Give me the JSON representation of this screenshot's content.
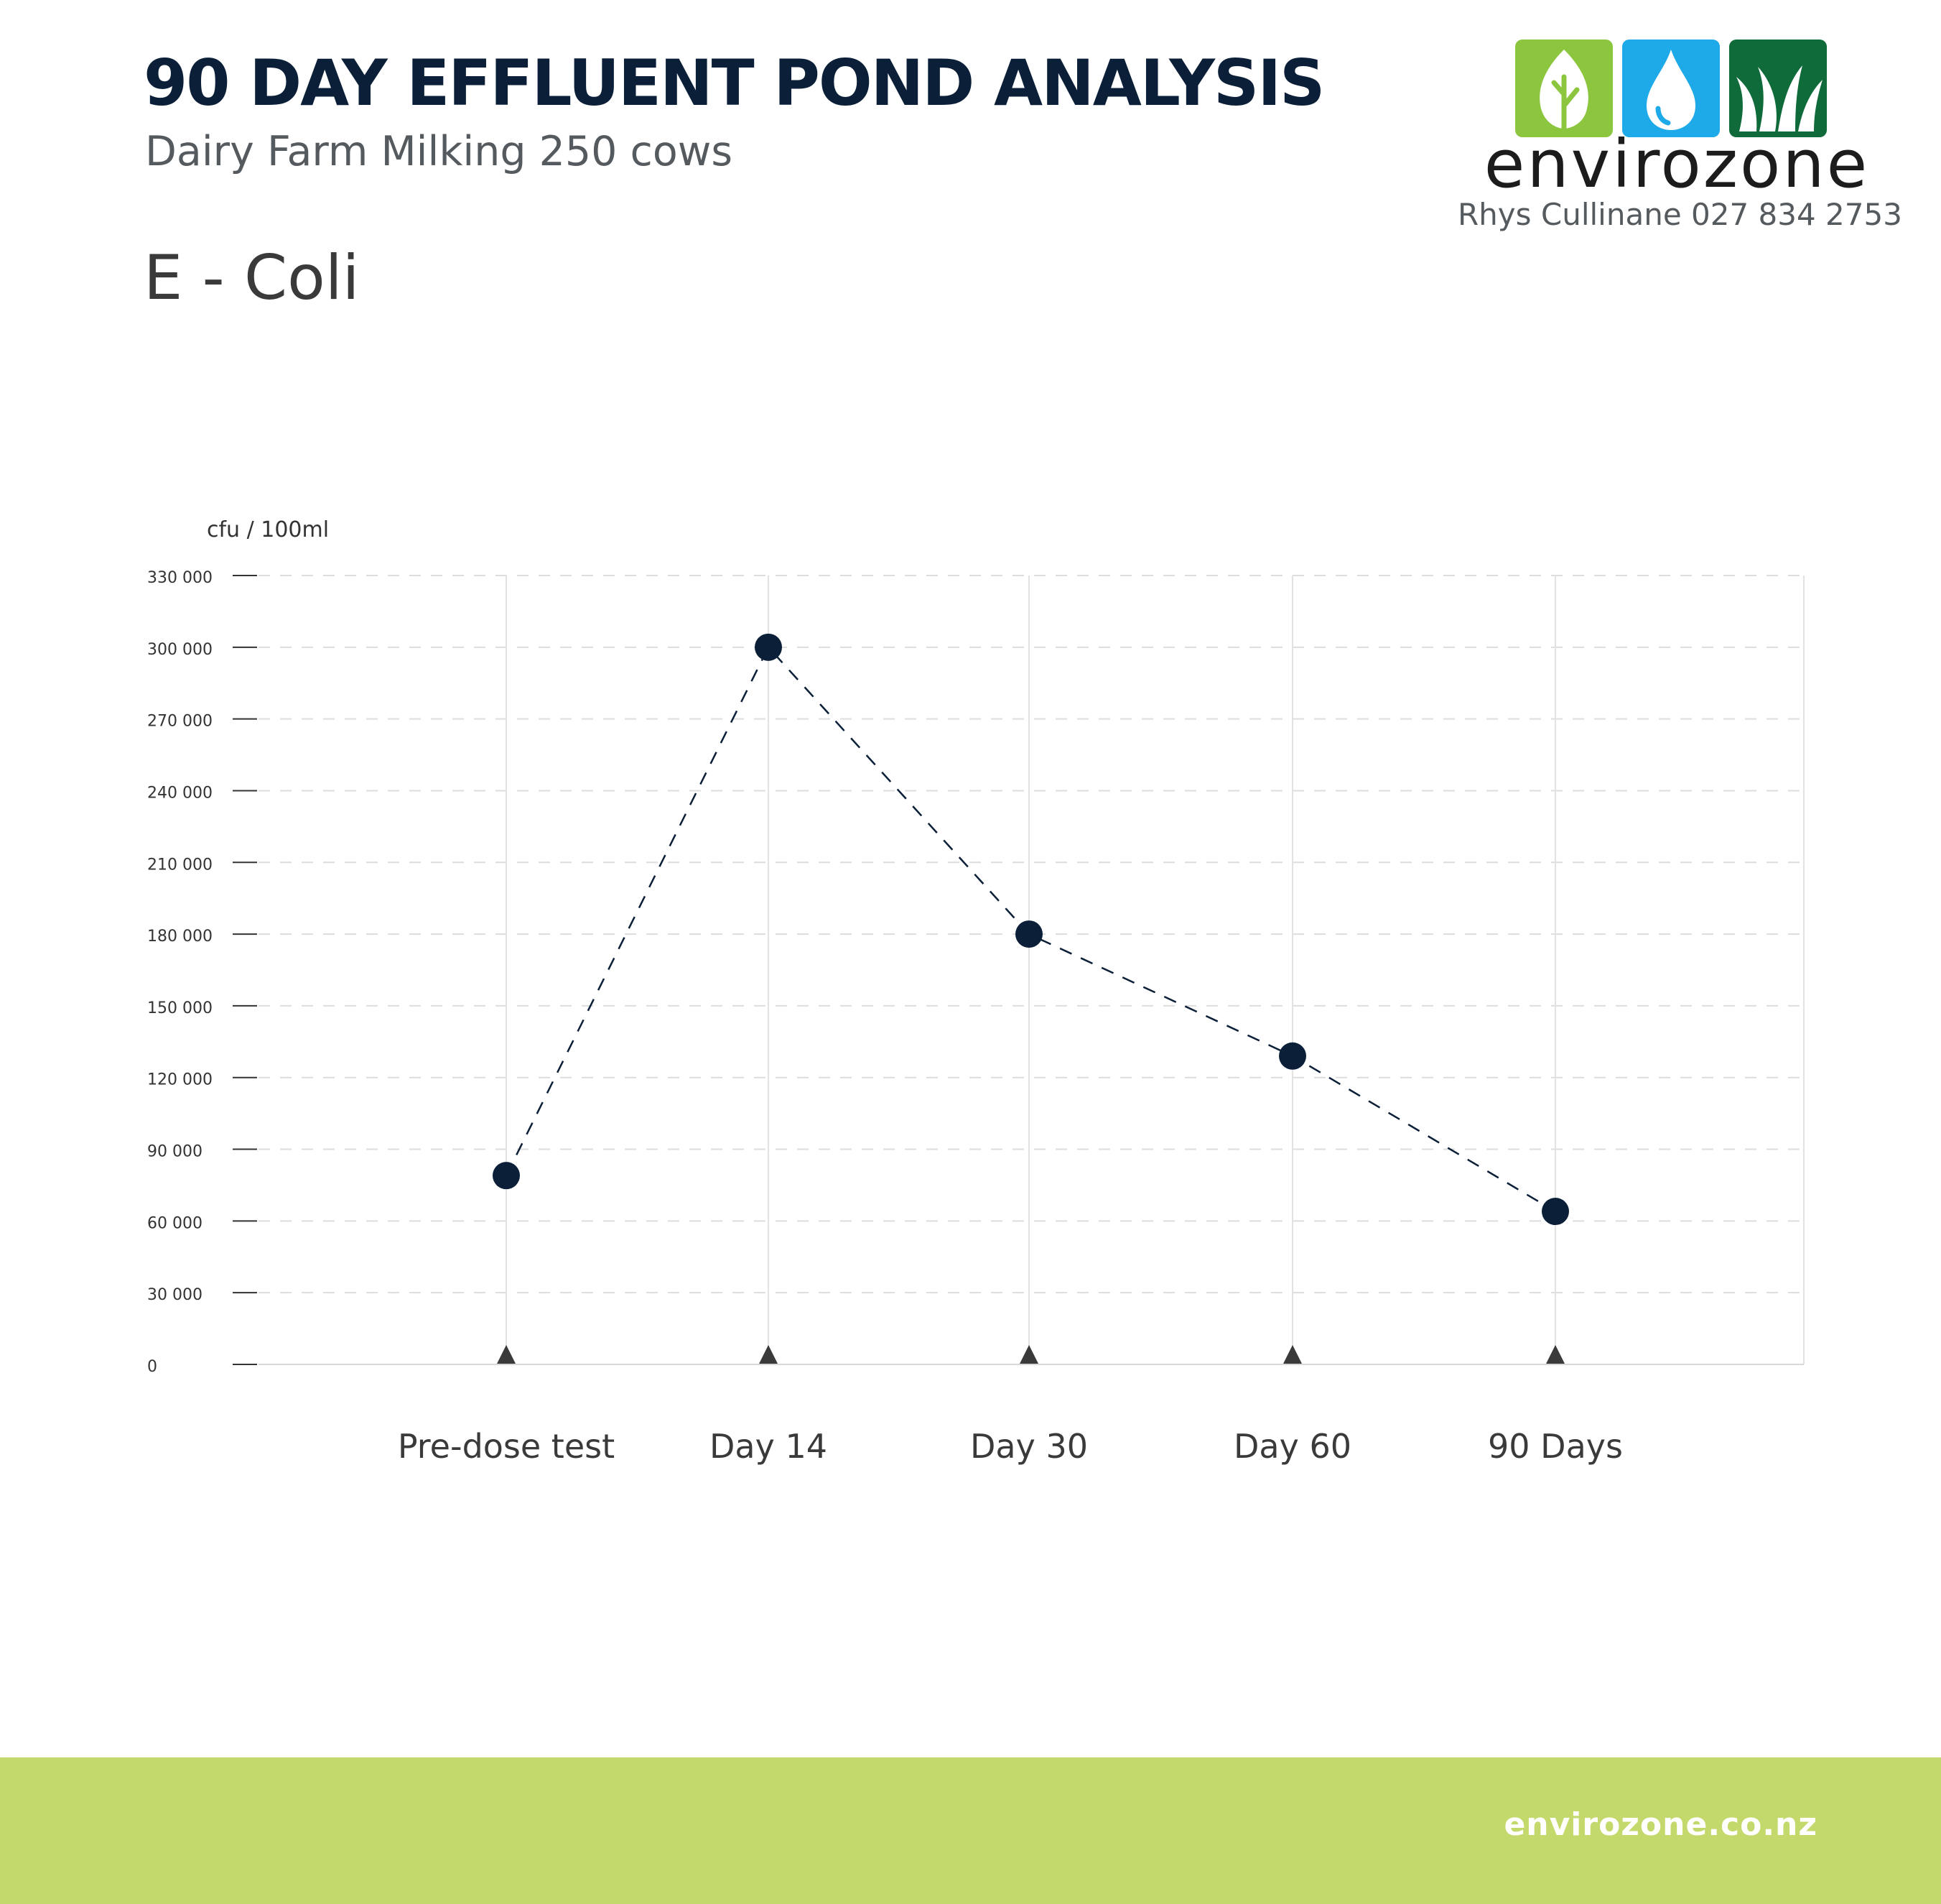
{
  "header": {
    "title": "90 DAY EFFLUENT POND ANALYSIS",
    "subtitle": "Dairy Farm Milking 250 cows",
    "section_title": "E - Coli"
  },
  "logo": {
    "brand": "envirozone",
    "contact": "Rhys Cullinane  027 834 2753",
    "colors": {
      "leaf": "#8cc63f",
      "drop": "#1ea9e8",
      "grass": "#0f6b3a"
    },
    "icons": [
      "leaf-icon",
      "water-drop-icon",
      "grass-icon"
    ]
  },
  "chart_data": {
    "type": "line",
    "ylabel": "cfu / 100ml",
    "categories": [
      "Pre-dose test",
      "Day 14",
      "Day 30",
      "Day 60",
      "90 Days"
    ],
    "series": [
      {
        "values": [
          79000,
          300000,
          180000,
          129000,
          64000
        ]
      }
    ],
    "ylim": [
      0,
      330000
    ],
    "yticks": [
      0,
      30000,
      60000,
      90000,
      120000,
      150000,
      180000,
      210000,
      240000,
      270000,
      300000,
      330000
    ],
    "ytick_labels": [
      "0",
      "30 000",
      "60 000",
      "90 000",
      "120 000",
      "150 000",
      "180 000",
      "210 000",
      "240 000",
      "270 000",
      "300 000",
      "330 000"
    ],
    "line_style": "dashed",
    "grid": true,
    "legend": "none",
    "colors": {
      "marker": "#0b2038",
      "line": "#0b2038",
      "grid": "#dddddd",
      "tick_marker": "#3a3a3a"
    }
  },
  "footer": {
    "website": "envirozone.co.nz",
    "color": "#c4d96b"
  }
}
